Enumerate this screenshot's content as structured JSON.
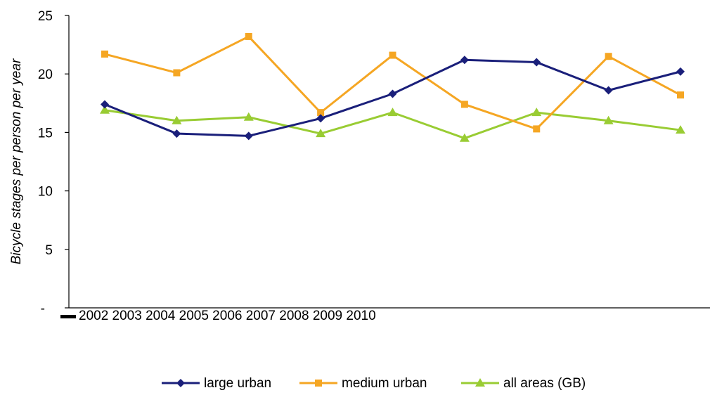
{
  "chart_data": {
    "type": "line",
    "title": "",
    "xlabel": "",
    "ylabel": "Bicycle stages per person per year",
    "x_tick_text": "2002 2003 2004 2005 2006 2007 2008 2009 2010",
    "y_ticks": [
      {
        "value": 0,
        "label": "-"
      },
      {
        "value": 5,
        "label": "5"
      },
      {
        "value": 10,
        "label": "10"
      },
      {
        "value": 15,
        "label": "15"
      },
      {
        "value": 20,
        "label": "20"
      },
      {
        "value": 25,
        "label": "25"
      }
    ],
    "ylim": [
      0,
      25
    ],
    "point_count": 9,
    "grid": false,
    "legend_position": "bottom",
    "series": [
      {
        "name": "large urban",
        "color": "#1a1f7a",
        "marker": "diamond",
        "values": [
          17.4,
          14.9,
          14.7,
          16.2,
          18.3,
          21.2,
          21.0,
          18.6,
          20.2
        ]
      },
      {
        "name": "medium urban",
        "color": "#f5a623",
        "marker": "square",
        "values": [
          21.7,
          20.1,
          23.2,
          16.7,
          21.6,
          17.4,
          15.3,
          21.5,
          18.2
        ]
      },
      {
        "name": "all areas (GB)",
        "color": "#99cc33",
        "marker": "triangle",
        "values": [
          16.9,
          16.0,
          16.3,
          14.9,
          16.7,
          14.5,
          16.7,
          16.0,
          15.2
        ]
      }
    ]
  }
}
